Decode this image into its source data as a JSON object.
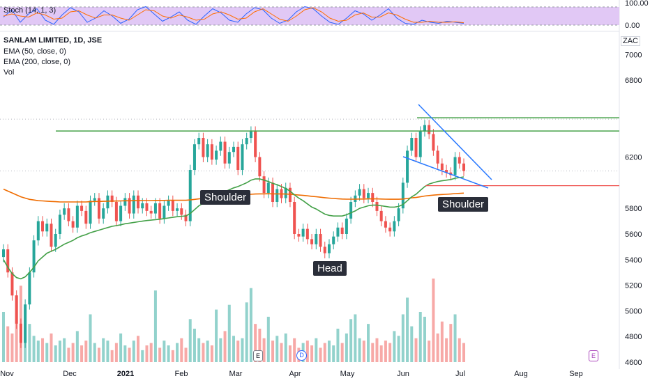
{
  "indicator_pane": {
    "label": "Stoch (14, 1, 3)",
    "levels": [
      "100.00",
      "0.00"
    ],
    "colors": {
      "k": "#2962ff",
      "d": "#ff6d00",
      "band": "#e1c8f5"
    },
    "k_values": [
      45,
      80,
      20,
      60,
      85,
      30,
      10,
      55,
      90,
      70,
      20,
      40,
      75,
      50,
      15,
      35,
      80,
      95,
      60,
      25,
      45,
      70,
      30,
      10,
      50,
      85,
      65,
      30,
      20,
      60,
      90,
      80,
      40,
      15,
      30,
      70,
      95,
      85,
      50,
      20,
      10,
      40,
      75,
      60,
      30,
      55,
      85,
      40,
      15,
      10,
      30,
      20,
      15,
      25,
      20,
      15
    ],
    "d_values": [
      50,
      60,
      50,
      45,
      65,
      55,
      35,
      40,
      70,
      75,
      55,
      40,
      55,
      55,
      40,
      30,
      55,
      80,
      75,
      50,
      40,
      55,
      45,
      30,
      35,
      60,
      70,
      55,
      35,
      40,
      70,
      85,
      60,
      35,
      25,
      50,
      80,
      90,
      70,
      40,
      25,
      30,
      55,
      65,
      45,
      45,
      65,
      55,
      35,
      20,
      20,
      25,
      20,
      20,
      22,
      18
    ]
  },
  "legend": {
    "symbol": "SANLAM LIMITED, 1D, JSE",
    "ema50": "EMA (50, close, 0)",
    "ema200": "EMA (200, close, 0)",
    "vol": "Vol"
  },
  "currency": "ZAC",
  "price_labels": [
    {
      "value": "6496",
      "color": "#4caf50"
    },
    {
      "value": "6404",
      "color": "#4caf50"
    },
    {
      "value": "6404",
      "color": "#4caf50"
    },
    {
      "value": "6092",
      "color": "#ef5350"
    },
    {
      "value": "5977",
      "color": "#ef5350"
    }
  ],
  "annotations": {
    "left_shoulder": "Shoulder",
    "head": "Head",
    "right_shoulder": "Shoulder"
  },
  "events": {
    "e1": "E",
    "d1": "D",
    "e2": "E"
  },
  "chart_data": {
    "type": "candlestick",
    "title": "SANLAM LIMITED, 1D, JSE",
    "ylabel": "ZAC",
    "ylim": [
      4600,
      7100
    ],
    "y_ticks": [
      7000,
      6800,
      6200,
      5800,
      5600,
      5400,
      5200,
      5000,
      4800,
      4600
    ],
    "x_ticks": [
      "Nov",
      "Dec",
      "2021",
      "Feb",
      "Mar",
      "Apr",
      "May",
      "Jun",
      "Jul",
      "Aug",
      "Sep"
    ],
    "colors": {
      "up": "#26a69a",
      "down": "#ef5350",
      "ema50": "#43a047",
      "ema200": "#ef6c00",
      "trendline": "#2979ff",
      "level": "#43a047",
      "level_red": "#ef5350"
    },
    "close": [
      5480,
      5300,
      5120,
      4900,
      4750,
      5050,
      5300,
      5550,
      5700,
      5620,
      5680,
      5500,
      5600,
      5750,
      5800,
      5700,
      5650,
      5820,
      5780,
      5680,
      5860,
      5880,
      5720,
      5800,
      5900,
      5850,
      5700,
      5820,
      5880,
      5760,
      5900,
      5800,
      5840,
      5780,
      5760,
      5840,
      5720,
      5820,
      5860,
      5780,
      5800,
      5750,
      5700,
      6100,
      6300,
      6350,
      6200,
      6300,
      6180,
      6250,
      6320,
      6150,
      6240,
      6280,
      6100,
      6300,
      6350,
      6400,
      6200,
      6050,
      5920,
      6000,
      5850,
      5950,
      5880,
      5960,
      5850,
      5600,
      5580,
      5640,
      5560,
      5520,
      5600,
      5500,
      5450,
      5520,
      5580,
      5650,
      5600,
      5720,
      5850,
      5900,
      5950,
      5880,
      5920,
      5850,
      5780,
      5700,
      5650,
      5620,
      5700,
      5800,
      6000,
      6250,
      6350,
      6200,
      6400,
      6450,
      6380,
      6250,
      6150,
      6100,
      6080,
      6060,
      6200,
      6150,
      6092
    ],
    "ema50": [
      5400,
      5340,
      5290,
      5260,
      5250,
      5265,
      5300,
      5340,
      5390,
      5420,
      5450,
      5465,
      5480,
      5500,
      5520,
      5535,
      5550,
      5570,
      5585,
      5595,
      5610,
      5620,
      5630,
      5640,
      5650,
      5660,
      5665,
      5672,
      5680,
      5685,
      5690,
      5695,
      5700,
      5705,
      5708,
      5712,
      5715,
      5720,
      5725,
      5730,
      5735,
      5738,
      5740,
      5760,
      5790,
      5820,
      5840,
      5860,
      5880,
      5900,
      5920,
      5930,
      5945,
      5960,
      5970,
      5985,
      6000,
      6020,
      6030,
      6030,
      6020,
      6010,
      5995,
      5985,
      5970,
      5955,
      5935,
      5905,
      5880,
      5860,
      5835,
      5810,
      5795,
      5775,
      5755,
      5745,
      5740,
      5740,
      5740,
      5750,
      5765,
      5780,
      5800,
      5810,
      5820,
      5825,
      5825,
      5820,
      5815,
      5810,
      5810,
      5815,
      5830,
      5860,
      5890,
      5910,
      5940,
      5970,
      5990,
      6000,
      6010,
      6015,
      6020,
      6025,
      6035,
      6040,
      6045
    ],
    "ema200": [
      5950,
      5935,
      5920,
      5905,
      5890,
      5880,
      5870,
      5865,
      5860,
      5858,
      5856,
      5854,
      5852,
      5850,
      5850,
      5850,
      5850,
      5850,
      5850,
      5850,
      5852,
      5854,
      5854,
      5855,
      5856,
      5857,
      5857,
      5858,
      5859,
      5859,
      5860,
      5860,
      5861,
      5861,
      5861,
      5862,
      5862,
      5862,
      5863,
      5863,
      5863,
      5863,
      5863,
      5866,
      5870,
      5874,
      5877,
      5880,
      5883,
      5886,
      5890,
      5892,
      5895,
      5898,
      5900,
      5903,
      5906,
      5910,
      5912,
      5913,
      5913,
      5914,
      5913,
      5913,
      5912,
      5912,
      5910,
      5907,
      5904,
      5901,
      5898,
      5894,
      5891,
      5887,
      5883,
      5880,
      5877,
      5875,
      5873,
      5872,
      5872,
      5872,
      5873,
      5873,
      5874,
      5874,
      5874,
      5873,
      5872,
      5871,
      5871,
      5871,
      5873,
      5877,
      5882,
      5885,
      5890,
      5896,
      5900,
      5903,
      5906,
      5908,
      5910,
      5912,
      5915,
      5917,
      5919
    ],
    "volume": [
      2.1,
      1.5,
      1.2,
      2.8,
      3.2,
      2.2,
      1.6,
      1.1,
      0.9,
      1.0,
      0.8,
      1.2,
      0.7,
      0.9,
      1.0,
      0.6,
      0.8,
      1.3,
      0.7,
      0.9,
      2.0,
      0.8,
      0.6,
      1.0,
      0.9,
      0.5,
      0.8,
      1.2,
      0.7,
      0.6,
      0.9,
      1.1,
      0.5,
      0.7,
      0.8,
      3.0,
      0.6,
      0.9,
      0.7,
      0.5,
      0.8,
      1.0,
      0.6,
      1.8,
      1.4,
      1.0,
      0.8,
      0.9,
      0.7,
      2.2,
      1.0,
      1.3,
      2.4,
      1.1,
      0.9,
      1.0,
      2.5,
      3.1,
      1.6,
      1.4,
      1.0,
      1.9,
      0.9,
      1.1,
      0.8,
      1.2,
      0.7,
      1.0,
      0.6,
      0.8,
      0.9,
      0.7,
      1.0,
      0.6,
      0.8,
      0.9,
      0.7,
      1.4,
      0.8,
      1.2,
      1.8,
      2.0,
      1.0,
      0.9,
      1.6,
      0.8,
      1.0,
      0.7,
      0.9,
      0.8,
      1.3,
      1.1,
      2.0,
      2.7,
      1.5,
      1.0,
      2.1,
      1.9,
      0.9,
      3.5,
      1.2,
      1.7,
      1.0,
      1.6,
      2.0,
      1.0,
      0.8
    ]
  }
}
